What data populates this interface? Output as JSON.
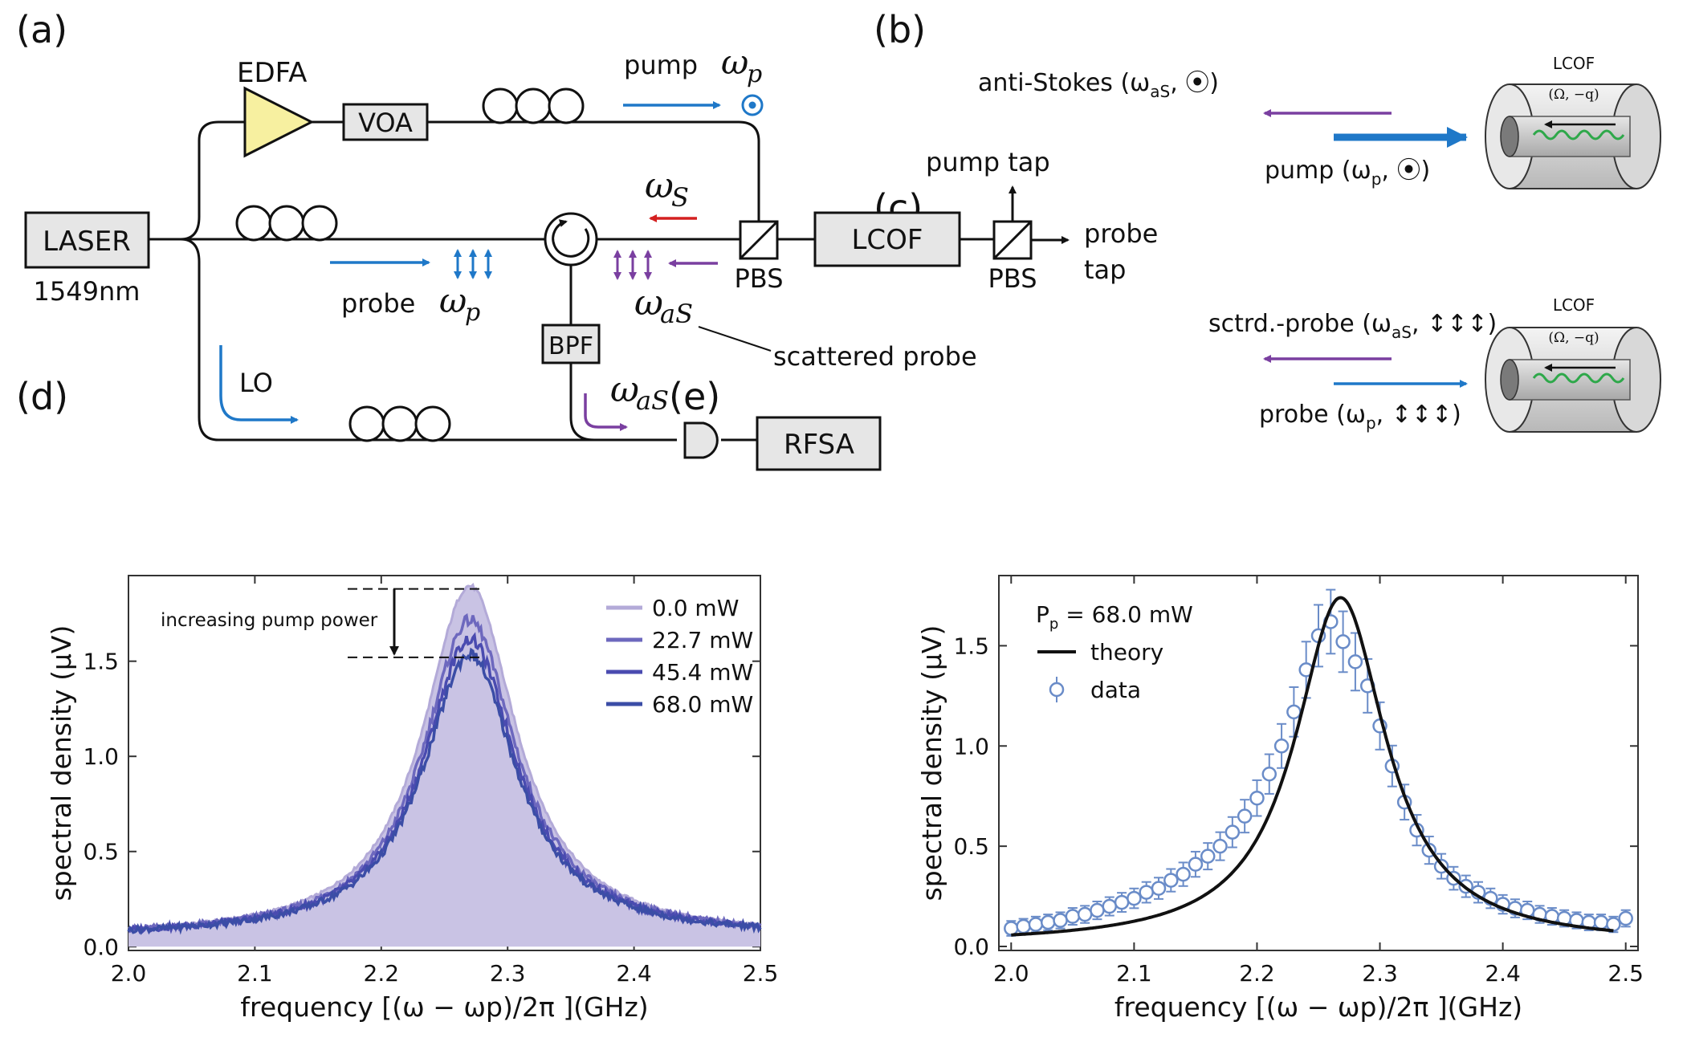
{
  "panels": {
    "a": "(a)",
    "b": "(b)",
    "c": "(c)",
    "d": "(d)",
    "e": "(e)"
  },
  "setup": {
    "laser": "LASER",
    "wavelength": "1549nm",
    "edfa": "EDFA",
    "voa": "VOA",
    "pbs1": "PBS",
    "pbs2": "PBS",
    "lcof": "LCOF",
    "bpf": "BPF",
    "rfsa": "RFSA",
    "pump_label": "pump",
    "pump_omega": "ω",
    "pump_sub": "p",
    "omega_s": "ω",
    "omega_s_sub": "S",
    "probe_label": "probe",
    "probe_omega": "ω",
    "probe_sub": "p",
    "omega_as": "ω",
    "omega_as_sub": "aS",
    "scattered_probe": "scattered probe",
    "omega_as2": "ω",
    "omega_as2_sub": "aS",
    "lo": "LO",
    "pump_tap": "pump tap",
    "probe_tap_1": "probe",
    "probe_tap_2": "tap",
    "colors": {
      "blue": "#1f78c8",
      "purple": "#7a3fa0",
      "red": "#d42020",
      "yellow": "#f7f0a0"
    }
  },
  "panel_b": {
    "anti_stokes": "anti-Stokes (ω",
    "anti_stokes_sub": "aS",
    "anti_stokes_end": ", ⦿)",
    "pump": "pump (ω",
    "pump_sub": "p",
    "pump_end": ", ⦿)",
    "lcof": "LCOF",
    "phonon": "(Ω, −q)"
  },
  "panel_c": {
    "sctrd": "sctrd.-probe (ω",
    "sctrd_sub": "aS",
    "sctrd_end": ", ↕↕↕)",
    "probe": "probe (ω",
    "probe_sub": "p",
    "probe_end": ", ↕↕↕)",
    "lcof": "LCOF",
    "phonon": "(Ω, −q)"
  },
  "chart_data": [
    {
      "type": "area",
      "panel": "(d)",
      "xlabel": "frequency [(ω − ωp)/2π ](GHz)",
      "ylabel": "spectral density (μV)",
      "xlim": [
        2.0,
        2.5
      ],
      "ylim": [
        -0.02,
        1.95
      ],
      "xticks": [
        "2.0",
        "2.1",
        "2.2",
        "2.3",
        "2.4",
        "2.5"
      ],
      "yticks": [
        "0.0",
        "0.5",
        "1.0",
        "1.5"
      ],
      "annotation": "increasing pump power",
      "legend_position": "top-right",
      "center": 2.27,
      "series": [
        {
          "name": "0.0   mW",
          "peak": 1.88,
          "baseline": 0.08,
          "color": "#b3aad8",
          "filled": true
        },
        {
          "name": "22.7 mW",
          "peak": 1.7,
          "baseline": 0.08,
          "color": "#6d68be"
        },
        {
          "name": "45.4 mW",
          "peak": 1.6,
          "baseline": 0.08,
          "color": "#4a4bb0"
        },
        {
          "name": "68.0 mW",
          "peak": 1.52,
          "baseline": 0.08,
          "color": "#3b4da6"
        }
      ]
    },
    {
      "type": "scatter",
      "panel": "(e)",
      "xlabel": "frequency [(ω − ωp)/2π ](GHz)",
      "ylabel": "spectral density (μV)",
      "xlim": [
        1.99,
        2.51
      ],
      "ylim": [
        -0.02,
        1.85
      ],
      "xticks": [
        "2.0",
        "2.1",
        "2.2",
        "2.3",
        "2.4",
        "2.5"
      ],
      "yticks": [
        "0.0",
        "0.5",
        "1.0",
        "1.5"
      ],
      "pp_label": "P",
      "pp_sub": "p",
      "pp_value": " = 68.0 mW",
      "legend": [
        "theory",
        "data"
      ],
      "legend_position": "top-left",
      "theory": {
        "peak": 1.74,
        "center": 2.268,
        "baseline": 0.01
      },
      "data_x": [
        2.0,
        2.01,
        2.02,
        2.03,
        2.04,
        2.05,
        2.06,
        2.07,
        2.08,
        2.09,
        2.1,
        2.11,
        2.12,
        2.13,
        2.14,
        2.15,
        2.16,
        2.17,
        2.18,
        2.19,
        2.2,
        2.21,
        2.22,
        2.23,
        2.24,
        2.25,
        2.26,
        2.27,
        2.28,
        2.29,
        2.3,
        2.31,
        2.32,
        2.33,
        2.34,
        2.35,
        2.36,
        2.37,
        2.38,
        2.39,
        2.4,
        2.41,
        2.42,
        2.43,
        2.44,
        2.45,
        2.46,
        2.47,
        2.48,
        2.49,
        2.5
      ],
      "data_y": [
        0.09,
        0.1,
        0.11,
        0.12,
        0.13,
        0.15,
        0.16,
        0.18,
        0.2,
        0.22,
        0.24,
        0.27,
        0.29,
        0.33,
        0.36,
        0.41,
        0.45,
        0.5,
        0.57,
        0.65,
        0.74,
        0.86,
        1.0,
        1.17,
        1.38,
        1.55,
        1.62,
        1.52,
        1.42,
        1.3,
        1.1,
        0.9,
        0.72,
        0.58,
        0.48,
        0.4,
        0.34,
        0.3,
        0.27,
        0.24,
        0.21,
        0.19,
        0.18,
        0.16,
        0.15,
        0.14,
        0.13,
        0.12,
        0.12,
        0.11,
        0.14
      ]
    }
  ]
}
